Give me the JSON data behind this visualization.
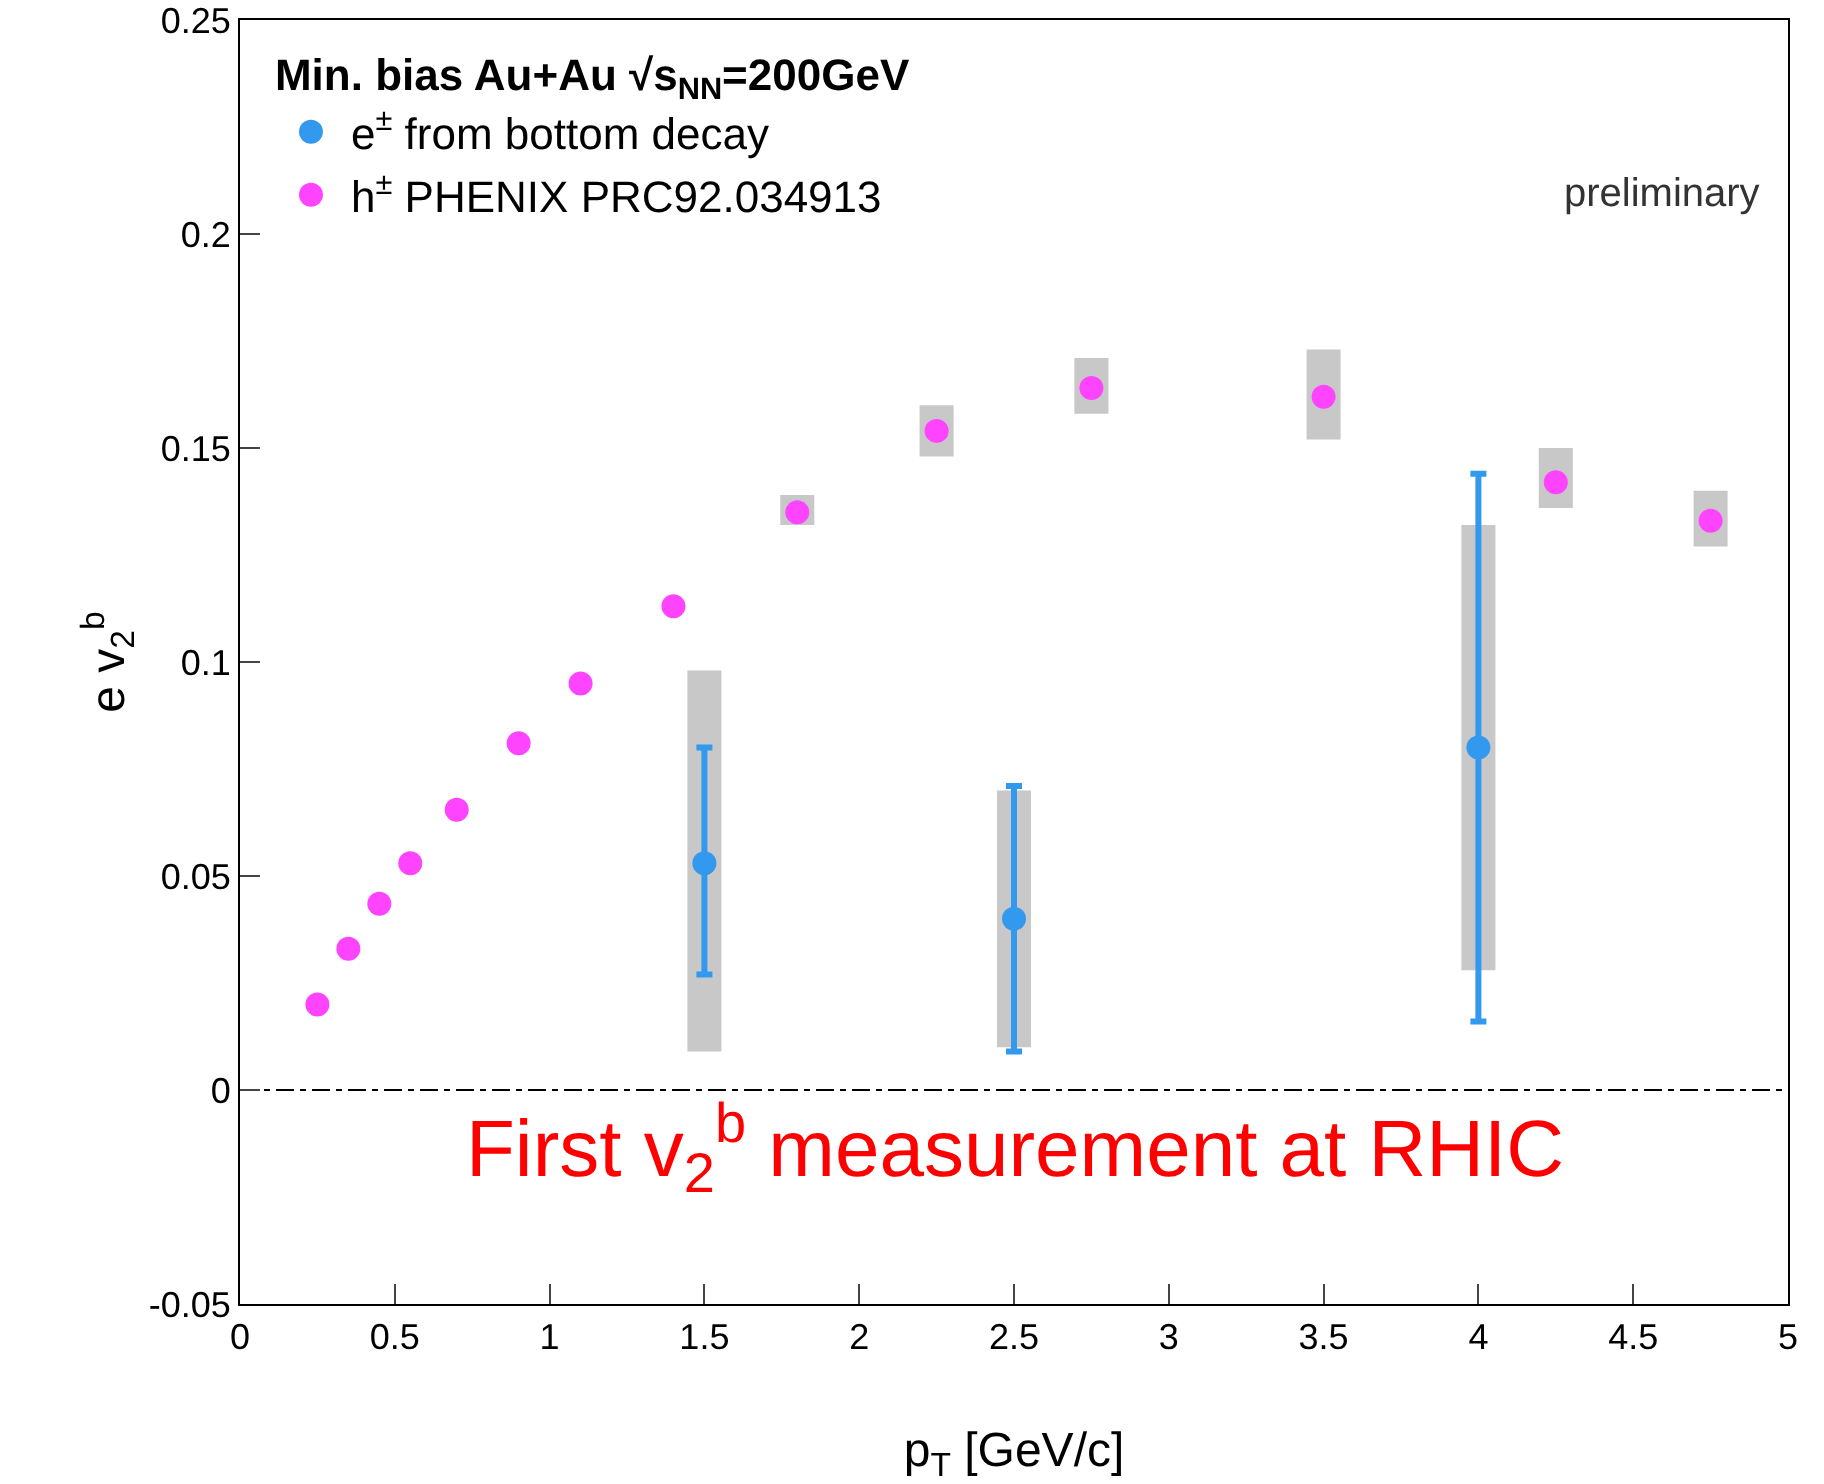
{
  "chart_data": {
    "type": "scatter",
    "xlabel": "p$_{T}$ [GeV/c]",
    "ylabel": "e v$_{2}$$^{b}$",
    "legend_title": "Min. bias Au+Au √s$_{NN}$=200GeV",
    "xlim": [
      0,
      5
    ],
    "xticks": [
      0,
      0.5,
      1,
      1.5,
      2,
      2.5,
      3,
      3.5,
      4,
      4.5,
      5
    ],
    "ylim": [
      -0.05,
      0.25
    ],
    "yticks": [
      -0.05,
      0,
      0.05,
      0.1,
      0.15,
      0.2,
      0.25
    ],
    "grid": false,
    "legend": "top left",
    "marker": "circle",
    "series": [
      {
        "type": "bar",
        "color": "#c8c8c8",
        "x": [
          1.5,
          1.8,
          2.25,
          2.5,
          2.75,
          3.5,
          4.0,
          4.25,
          4.75
        ],
        "base": [
          0.009,
          0.132,
          0.148,
          0.01,
          0.158,
          0.152,
          0.028,
          0.136,
          0.127
        ],
        "values": [
          0.089,
          0.007,
          0.012,
          0.06,
          0.013,
          0.021,
          0.104,
          0.014,
          0.013
        ]
      },
      {
        "type": "scatter",
        "name": "e$^{±}$ from bottom decay",
        "color": "#3399ee",
        "x": [
          1.5,
          2.5,
          4.0
        ],
        "values": [
          0.053,
          0.04,
          0.08
        ],
        "errors": [
          [
            0.027,
            0.08
          ],
          [
            0.009,
            0.071
          ],
          [
            0.016,
            0.144
          ]
        ]
      },
      {
        "name": "h$^{±}$ PHENIX PRC92.034913",
        "color": "#ff44ff",
        "x": [
          0.25,
          0.35,
          0.45,
          0.55,
          0.7,
          0.9,
          1.1,
          1.4,
          1.8,
          2.25,
          2.75,
          3.5,
          4.25,
          4.75
        ],
        "values": [
          0.02,
          0.033,
          0.0435,
          0.053,
          0.0655,
          0.081,
          0.095,
          0.113,
          0.135,
          0.154,
          0.164,
          0.162,
          0.142,
          0.133
        ]
      }
    ],
    "ref_lines": [
      {
        "axis": "y",
        "value": 0,
        "line_style": "dashdot",
        "color": "#000000"
      }
    ],
    "annotations": [
      "First v$_{2}$$^{b}$ measurement at RHIC",
      "preliminary"
    ]
  }
}
